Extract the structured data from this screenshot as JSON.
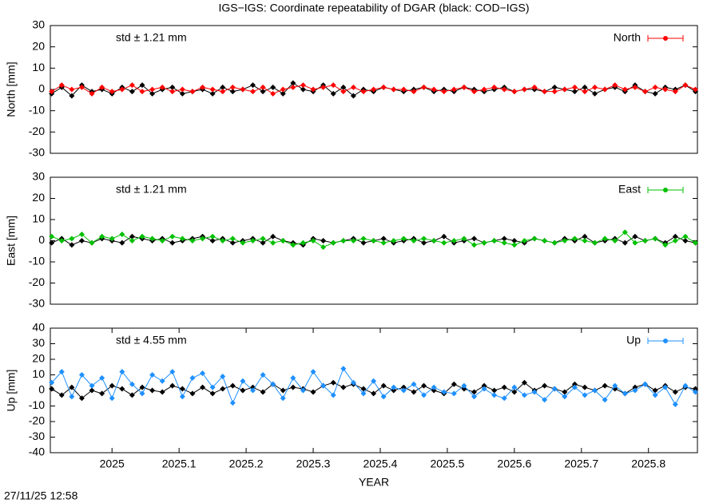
{
  "title": "IGS−IGS: Coordinate repeatability of DGAR (black: COD−IGS)",
  "timestamp": "27/11/25 12:58",
  "chart_data": [
    {
      "type": "line",
      "ylabel": "North [mm]",
      "annotation": "std ± 1.21 mm",
      "legend": "top-right",
      "xlim": [
        2024.908,
        2025.873
      ],
      "ylim": [
        -30,
        30
      ],
      "yticks": [
        -30,
        -20,
        -10,
        0,
        10,
        20,
        30
      ],
      "x": [
        2024.91,
        2024.925,
        2024.94,
        2024.955,
        2024.97,
        2024.985,
        2025,
        2025.015,
        2025.03,
        2025.045,
        2025.06,
        2025.075,
        2025.09,
        2025.105,
        2025.12,
        2025.135,
        2025.15,
        2025.165,
        2025.18,
        2025.195,
        2025.21,
        2025.225,
        2025.24,
        2025.255,
        2025.27,
        2025.285,
        2025.3,
        2025.315,
        2025.33,
        2025.345,
        2025.36,
        2025.375,
        2025.39,
        2025.405,
        2025.42,
        2025.435,
        2025.45,
        2025.465,
        2025.48,
        2025.495,
        2025.51,
        2025.525,
        2025.54,
        2025.555,
        2025.57,
        2025.585,
        2025.6,
        2025.615,
        2025.63,
        2025.645,
        2025.66,
        2025.675,
        2025.69,
        2025.705,
        2025.72,
        2025.735,
        2025.75,
        2025.765,
        2025.78,
        2025.795,
        2025.81,
        2025.825,
        2025.84,
        2025.855,
        2025.87
      ],
      "series": [
        {
          "color": "#000000",
          "values": [
            -2,
            1,
            -3,
            2,
            -1,
            0,
            -2,
            1,
            -1,
            2,
            -2,
            0,
            1,
            -2,
            -1,
            0,
            -2,
            1,
            -1,
            0,
            2,
            -1,
            1,
            -2,
            3,
            0,
            -1,
            2,
            -2,
            1,
            -3,
            0,
            -1,
            1,
            0,
            -1,
            0,
            1,
            -1,
            0,
            -1,
            1,
            0,
            -1,
            0,
            1,
            -1,
            0,
            0,
            -1,
            1,
            0,
            -1,
            1,
            -2,
            0,
            1,
            -1,
            2,
            -1,
            -2,
            1,
            0,
            2,
            -1
          ]
        },
        {
          "name": "North",
          "color": "#ff0000",
          "values": [
            -1,
            2,
            0,
            1,
            -2,
            1,
            -1,
            0,
            2,
            -1,
            0,
            1,
            -1,
            0,
            -1,
            1,
            0,
            -1,
            1,
            0,
            -1,
            1,
            -2,
            0,
            1,
            2,
            0,
            1,
            2,
            -1,
            1,
            -1,
            0,
            1,
            0,
            0,
            -1,
            1,
            0,
            -1,
            0,
            1,
            -1,
            0,
            1,
            0,
            -1,
            0,
            1,
            -1,
            -1,
            0,
            1,
            -1,
            1,
            0,
            2,
            0,
            1,
            -1,
            1,
            0,
            -1,
            2,
            0
          ]
        }
      ]
    },
    {
      "type": "line",
      "ylabel": "East [mm]",
      "annotation": "std ± 1.21 mm",
      "legend": "top-right",
      "xlim": [
        2024.908,
        2025.873
      ],
      "ylim": [
        -30,
        30
      ],
      "yticks": [
        -30,
        -20,
        -10,
        0,
        10,
        20,
        30
      ],
      "x": [
        2024.91,
        2024.925,
        2024.94,
        2024.955,
        2024.97,
        2024.985,
        2025,
        2025.015,
        2025.03,
        2025.045,
        2025.06,
        2025.075,
        2025.09,
        2025.105,
        2025.12,
        2025.135,
        2025.15,
        2025.165,
        2025.18,
        2025.195,
        2025.21,
        2025.225,
        2025.24,
        2025.255,
        2025.27,
        2025.285,
        2025.3,
        2025.315,
        2025.33,
        2025.345,
        2025.36,
        2025.375,
        2025.39,
        2025.405,
        2025.42,
        2025.435,
        2025.45,
        2025.465,
        2025.48,
        2025.495,
        2025.51,
        2025.525,
        2025.54,
        2025.555,
        2025.57,
        2025.585,
        2025.6,
        2025.615,
        2025.63,
        2025.645,
        2025.66,
        2025.675,
        2025.69,
        2025.705,
        2025.72,
        2025.735,
        2025.75,
        2025.765,
        2025.78,
        2025.795,
        2025.81,
        2025.825,
        2025.84,
        2025.855,
        2025.87
      ],
      "series": [
        {
          "color": "#000000",
          "values": [
            -1,
            1,
            -2,
            0,
            -1,
            1,
            0,
            -1,
            2,
            1,
            0,
            1,
            -1,
            0,
            1,
            2,
            0,
            1,
            -1,
            0,
            1,
            -1,
            2,
            0,
            -1,
            -2,
            1,
            0,
            -1,
            0,
            1,
            -1,
            0,
            1,
            -1,
            0,
            1,
            -1,
            0,
            2,
            -1,
            0,
            1,
            -1,
            0,
            1,
            0,
            -1,
            1,
            0,
            -1,
            1,
            0,
            2,
            -1,
            0,
            1,
            -1,
            2,
            0,
            1,
            -1,
            2,
            0,
            -1
          ]
        },
        {
          "name": "East",
          "color": "#00c000",
          "values": [
            2,
            0,
            1,
            3,
            -1,
            2,
            1,
            3,
            0,
            2,
            1,
            0,
            2,
            1,
            0,
            1,
            2,
            0,
            1,
            -1,
            0,
            1,
            -1,
            0,
            -2,
            -1,
            0,
            -3,
            -1,
            0,
            0,
            1,
            0,
            -1,
            0,
            1,
            0,
            1,
            0,
            -1,
            0,
            1,
            -2,
            -1,
            0,
            -1,
            -2,
            0,
            1,
            0,
            -1,
            0,
            1,
            0,
            -1,
            1,
            0,
            4,
            -1,
            0,
            1,
            -2,
            0,
            2,
            -1
          ]
        }
      ]
    },
    {
      "type": "line",
      "ylabel": "Up [mm]",
      "annotation": "std ± 4.55 mm",
      "legend": "top-right",
      "xlabel": "YEAR",
      "xlim": [
        2024.908,
        2025.873
      ],
      "ylim": [
        -40,
        40
      ],
      "yticks": [
        -40,
        -30,
        -20,
        -10,
        0,
        10,
        20,
        30,
        40
      ],
      "xticks": [
        2025,
        2025.1,
        2025.2,
        2025.3,
        2025.4,
        2025.5,
        2025.6,
        2025.7,
        2025.8
      ],
      "x": [
        2024.91,
        2024.925,
        2024.94,
        2024.955,
        2024.97,
        2024.985,
        2025,
        2025.015,
        2025.03,
        2025.045,
        2025.06,
        2025.075,
        2025.09,
        2025.105,
        2025.12,
        2025.135,
        2025.15,
        2025.165,
        2025.18,
        2025.195,
        2025.21,
        2025.225,
        2025.24,
        2025.255,
        2025.27,
        2025.285,
        2025.3,
        2025.315,
        2025.33,
        2025.345,
        2025.36,
        2025.375,
        2025.39,
        2025.405,
        2025.42,
        2025.435,
        2025.45,
        2025.465,
        2025.48,
        2025.495,
        2025.51,
        2025.525,
        2025.54,
        2025.555,
        2025.57,
        2025.585,
        2025.6,
        2025.615,
        2025.63,
        2025.645,
        2025.66,
        2025.675,
        2025.69,
        2025.705,
        2025.72,
        2025.735,
        2025.75,
        2025.765,
        2025.78,
        2025.795,
        2025.81,
        2025.825,
        2025.84,
        2025.855,
        2025.87
      ],
      "series": [
        {
          "color": "#000000",
          "values": [
            1,
            -3,
            2,
            -5,
            0,
            -2,
            3,
            1,
            -3,
            2,
            0,
            -1,
            3,
            1,
            -2,
            2,
            -2,
            1,
            3,
            0,
            2,
            -1,
            4,
            0,
            2,
            1,
            -1,
            3,
            5,
            2,
            4,
            1,
            -2,
            3,
            0,
            2,
            -1,
            3,
            0,
            -2,
            4,
            1,
            -1,
            3,
            0,
            2,
            -1,
            5,
            0,
            3,
            1,
            -1,
            4,
            2,
            0,
            3,
            1,
            -2,
            2,
            4,
            0,
            3,
            -1,
            2,
            1
          ]
        },
        {
          "name": "Up",
          "color": "#1e90ff",
          "values": [
            5,
            12,
            -4,
            10,
            3,
            8,
            -5,
            12,
            4,
            -2,
            10,
            6,
            12,
            -4,
            8,
            11,
            2,
            9,
            -8,
            6,
            0,
            10,
            4,
            -5,
            8,
            0,
            12,
            3,
            -3,
            14,
            5,
            -2,
            6,
            -4,
            2,
            0,
            4,
            -3,
            2,
            -1,
            -2,
            3,
            -4,
            1,
            -3,
            -5,
            2,
            -3,
            -1,
            -6,
            1,
            -4,
            2,
            -3,
            0,
            -6,
            3,
            -2,
            0,
            4,
            -3,
            2,
            -9,
            3,
            -1
          ]
        }
      ]
    }
  ]
}
